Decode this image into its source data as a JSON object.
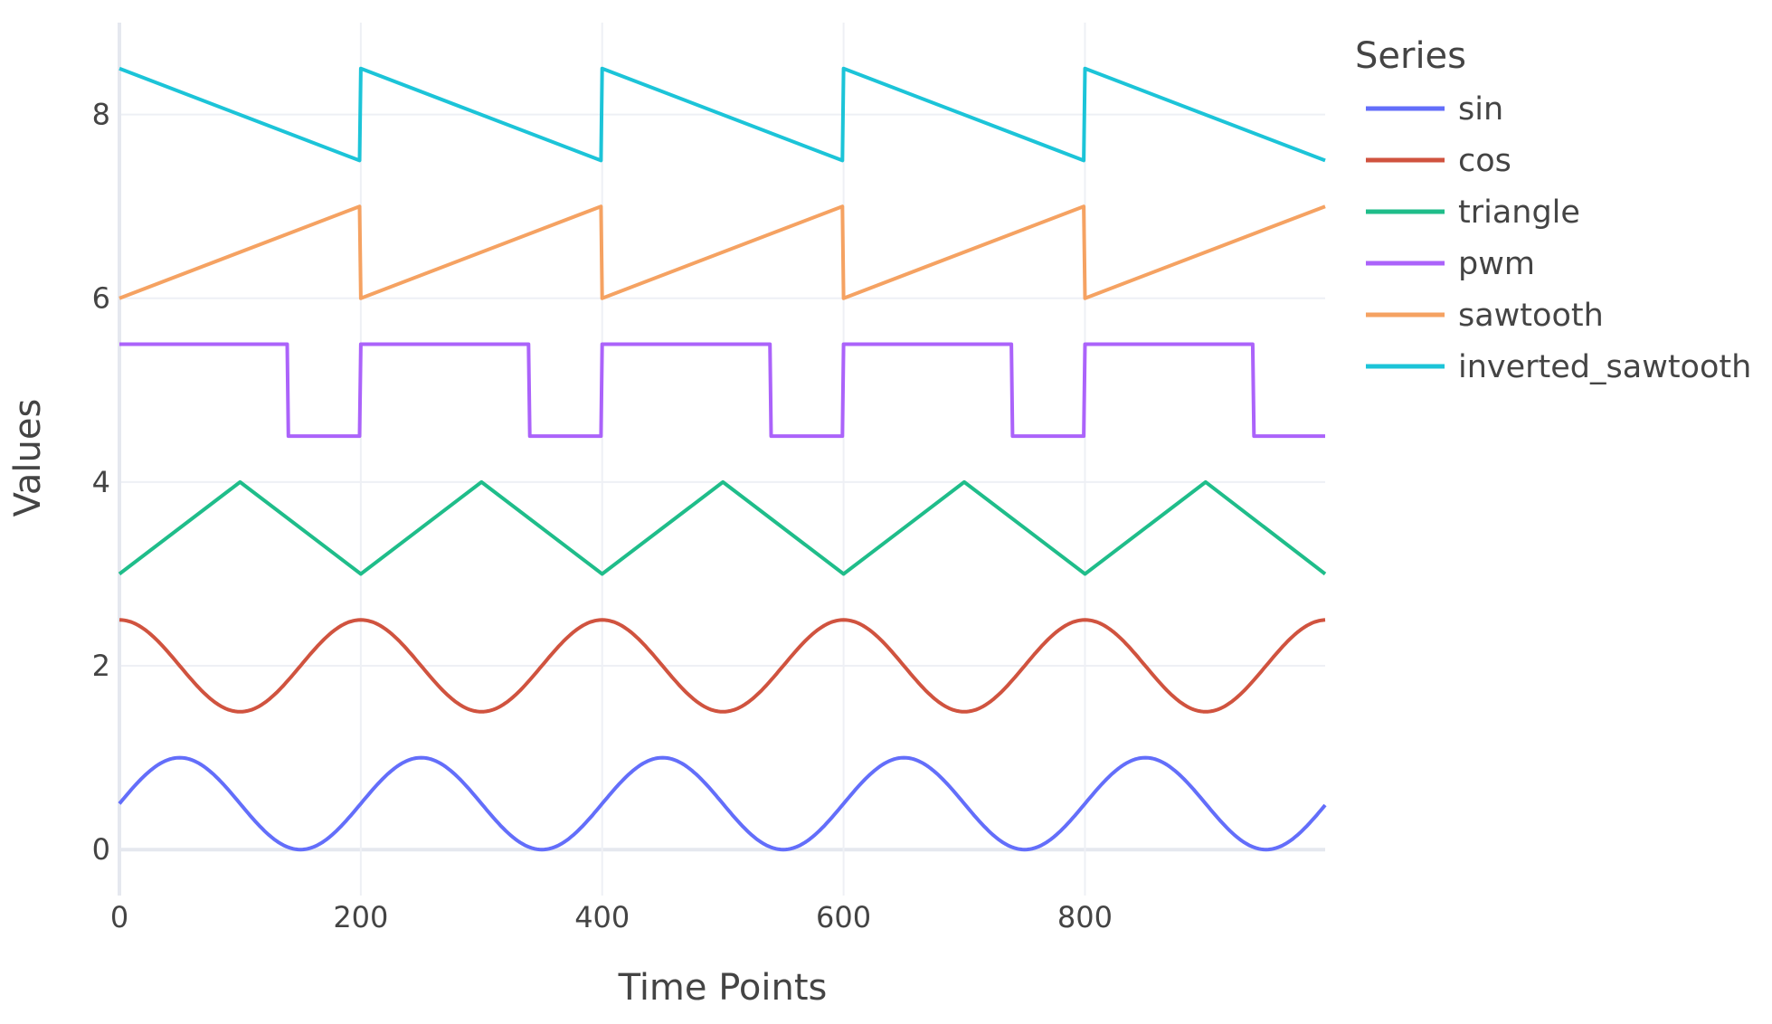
{
  "chart_data": {
    "type": "line",
    "xlabel": "Time Points",
    "ylabel": "Values",
    "xlim": [
      0,
      999
    ],
    "ylim": [
      -0.5,
      9.0
    ],
    "grid": true,
    "x_ticks": [
      0,
      200,
      400,
      600,
      800
    ],
    "y_ticks": [
      0,
      2,
      4,
      6,
      8
    ],
    "legend": {
      "title": "Series",
      "placement": "right"
    },
    "series": [
      {
        "name": "sin",
        "color": "#636efa",
        "shape": "sine",
        "period": 200,
        "offset": 0.5,
        "amplitude": 0.5
      },
      {
        "name": "cos",
        "color": "#d0533f",
        "shape": "cosine",
        "period": 200,
        "offset": 2.0,
        "amplitude": 0.5
      },
      {
        "name": "triangle",
        "color": "#1fbd8a",
        "shape": "points",
        "points": [
          [
            0,
            3
          ],
          [
            100,
            4
          ],
          [
            200,
            3
          ],
          [
            300,
            4
          ],
          [
            400,
            3
          ],
          [
            500,
            4
          ],
          [
            600,
            3
          ],
          [
            700,
            4
          ],
          [
            800,
            3
          ],
          [
            900,
            4
          ],
          [
            999,
            3
          ]
        ]
      },
      {
        "name": "pwm",
        "color": "#ab63fa",
        "shape": "points",
        "points": [
          [
            0,
            5.5
          ],
          [
            139,
            5.5
          ],
          [
            140,
            4.5
          ],
          [
            199,
            4.5
          ],
          [
            200,
            5.5
          ],
          [
            339,
            5.5
          ],
          [
            340,
            4.5
          ],
          [
            399,
            4.5
          ],
          [
            400,
            5.5
          ],
          [
            539,
            5.5
          ],
          [
            540,
            4.5
          ],
          [
            599,
            4.5
          ],
          [
            600,
            5.5
          ],
          [
            739,
            5.5
          ],
          [
            740,
            4.5
          ],
          [
            799,
            4.5
          ],
          [
            800,
            5.5
          ],
          [
            939,
            5.5
          ],
          [
            940,
            4.5
          ],
          [
            999,
            4.5
          ]
        ]
      },
      {
        "name": "sawtooth",
        "color": "#f5a262",
        "shape": "points",
        "points": [
          [
            0,
            6
          ],
          [
            199,
            7
          ],
          [
            200,
            6
          ],
          [
            399,
            7
          ],
          [
            400,
            6
          ],
          [
            599,
            7
          ],
          [
            600,
            6
          ],
          [
            799,
            7
          ],
          [
            800,
            6
          ],
          [
            999,
            7
          ]
        ]
      },
      {
        "name": "inverted_sawtooth",
        "color": "#1cc4d8",
        "shape": "points",
        "points": [
          [
            0,
            8.5
          ],
          [
            199,
            7.5
          ],
          [
            200,
            8.5
          ],
          [
            399,
            7.5
          ],
          [
            400,
            8.5
          ],
          [
            599,
            7.5
          ],
          [
            600,
            8.5
          ],
          [
            799,
            7.5
          ],
          [
            800,
            8.5
          ],
          [
            999,
            7.5
          ]
        ]
      }
    ]
  }
}
